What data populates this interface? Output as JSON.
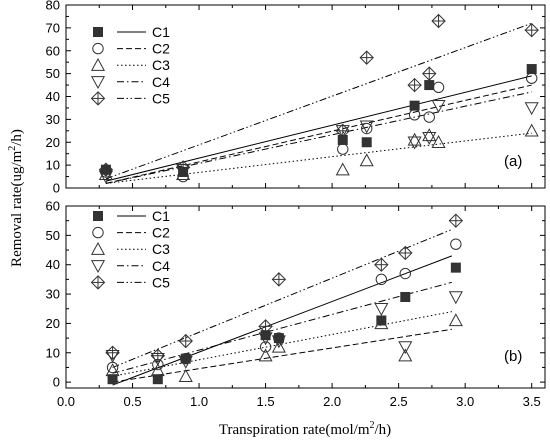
{
  "chart_data": [
    {
      "type": "scatter",
      "panel_label": "(a)",
      "xlim": [
        0.0,
        3.6
      ],
      "ylim": [
        0,
        80
      ],
      "x_ticks": [
        "0.0",
        "0.5",
        "1.0",
        "1.5",
        "2.0",
        "2.5",
        "3.0",
        "3.5"
      ],
      "y_ticks": [
        "0",
        "10",
        "20",
        "30",
        "40",
        "50",
        "60",
        "70",
        "80"
      ],
      "legend_position": "top-left",
      "series": [
        {
          "name": "C1",
          "marker": "square-filled",
          "line_style": "solid",
          "points": [
            [
              0.3,
              8
            ],
            [
              0.88,
              7
            ],
            [
              2.08,
              21
            ],
            [
              2.26,
              20
            ],
            [
              2.62,
              36
            ],
            [
              2.73,
              45
            ],
            [
              3.5,
              52
            ]
          ],
          "fit": [
            [
              0.3,
              3
            ],
            [
              3.5,
              49
            ]
          ]
        },
        {
          "name": "C2",
          "marker": "circle-open",
          "line_style": "dashed",
          "points": [
            [
              0.3,
              7
            ],
            [
              0.88,
              5
            ],
            [
              2.08,
              17
            ],
            [
              2.26,
              26
            ],
            [
              2.62,
              32
            ],
            [
              2.73,
              31
            ],
            [
              2.8,
              44
            ],
            [
              3.5,
              48
            ]
          ],
          "fit": [
            [
              0.3,
              2
            ],
            [
              3.5,
              45
            ]
          ]
        },
        {
          "name": "C3",
          "marker": "triangle-up-open",
          "line_style": "dotted",
          "points": [
            [
              0.3,
              6
            ],
            [
              0.88,
              6
            ],
            [
              2.08,
              8
            ],
            [
              2.26,
              12
            ],
            [
              2.62,
              21
            ],
            [
              2.73,
              23
            ],
            [
              2.8,
              20
            ],
            [
              3.5,
              25
            ]
          ],
          "fit": [
            [
              0.3,
              2
            ],
            [
              3.5,
              24
            ]
          ]
        },
        {
          "name": "C4",
          "marker": "triangle-down-open",
          "line_style": "dash-dot",
          "points": [
            [
              0.3,
              5
            ],
            [
              0.88,
              8
            ],
            [
              2.08,
              25
            ],
            [
              2.26,
              27
            ],
            [
              2.62,
              20
            ],
            [
              2.73,
              22
            ],
            [
              2.8,
              36
            ],
            [
              3.5,
              35
            ]
          ],
          "fit": [
            [
              0.3,
              2
            ],
            [
              3.5,
              42
            ]
          ]
        },
        {
          "name": "C5",
          "marker": "diamond-cross",
          "line_style": "dash-dot-dot",
          "points": [
            [
              0.3,
              8
            ],
            [
              0.88,
              9
            ],
            [
              2.08,
              25
            ],
            [
              2.26,
              57
            ],
            [
              2.62,
              45
            ],
            [
              2.73,
              50
            ],
            [
              2.8,
              73
            ],
            [
              3.5,
              69
            ]
          ],
          "fit": [
            [
              0.3,
              4
            ],
            [
              3.5,
              72
            ]
          ]
        }
      ]
    },
    {
      "type": "scatter",
      "panel_label": "(b)",
      "xlim": [
        0.0,
        3.6
      ],
      "ylim": [
        -2,
        60
      ],
      "x_ticks": [
        "0.0",
        "0.5",
        "1.0",
        "1.5",
        "2.0",
        "2.5",
        "3.0",
        "3.5"
      ],
      "y_ticks": [
        "0",
        "10",
        "20",
        "30",
        "40",
        "50",
        "60"
      ],
      "legend_position": "top-left",
      "xlabel": "Transpiration rate(mol/m²/h)",
      "series": [
        {
          "name": "C1",
          "marker": "square-filled",
          "line_style": "solid",
          "points": [
            [
              0.35,
              1
            ],
            [
              0.69,
              1
            ],
            [
              0.9,
              8
            ],
            [
              1.5,
              16
            ],
            [
              1.6,
              15
            ],
            [
              2.37,
              21
            ],
            [
              2.55,
              29
            ],
            [
              2.93,
              39
            ]
          ],
          "fit": [
            [
              0.35,
              -1
            ],
            [
              2.9,
              43
            ]
          ]
        },
        {
          "name": "C2",
          "marker": "circle-open",
          "line_style": "dashed",
          "points": [
            [
              0.35,
              5
            ],
            [
              0.69,
              6
            ],
            [
              0.9,
              8
            ],
            [
              1.5,
              12
            ],
            [
              1.6,
              15
            ],
            [
              2.37,
              35
            ],
            [
              2.55,
              37
            ],
            [
              2.93,
              47
            ]
          ],
          "fit": [
            [
              0.35,
              0
            ],
            [
              2.9,
              18
            ]
          ]
        },
        {
          "name": "C3",
          "marker": "triangle-up-open",
          "line_style": "dotted",
          "points": [
            [
              0.35,
              4
            ],
            [
              0.69,
              4
            ],
            [
              0.9,
              2
            ],
            [
              1.5,
              9
            ],
            [
              1.6,
              12
            ],
            [
              2.37,
              20
            ],
            [
              2.55,
              9
            ],
            [
              2.93,
              21
            ]
          ],
          "fit": [
            [
              0.35,
              2
            ],
            [
              2.9,
              24
            ]
          ]
        },
        {
          "name": "C4",
          "marker": "triangle-down-open",
          "line_style": "dash-dot",
          "points": [
            [
              0.35,
              9
            ],
            [
              0.69,
              8
            ],
            [
              0.9,
              7
            ],
            [
              1.5,
              15
            ],
            [
              1.6,
              14
            ],
            [
              2.37,
              25
            ],
            [
              2.55,
              12
            ],
            [
              2.93,
              29
            ]
          ],
          "fit": [
            [
              0.35,
              3
            ],
            [
              2.9,
              34
            ]
          ]
        },
        {
          "name": "C5",
          "marker": "diamond-cross",
          "line_style": "dash-dot-dot",
          "points": [
            [
              0.35,
              10
            ],
            [
              0.69,
              9
            ],
            [
              0.9,
              14
            ],
            [
              1.5,
              19
            ],
            [
              1.6,
              35
            ],
            [
              2.37,
              40
            ],
            [
              2.55,
              44
            ],
            [
              2.93,
              55
            ]
          ],
          "fit": [
            [
              0.35,
              5
            ],
            [
              2.9,
              52
            ]
          ]
        }
      ]
    }
  ],
  "ylabel_lines": [
    "Removal rate(ug/m",
    "2",
    "/h)"
  ],
  "xlabel_lines": [
    "Transpiration rate(mol/m",
    "2",
    "/h)"
  ]
}
